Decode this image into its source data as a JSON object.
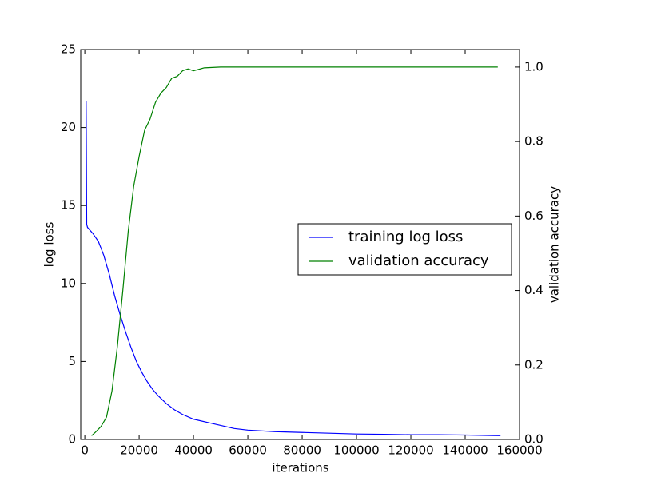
{
  "chart_data": {
    "type": "line",
    "xlabel": "iterations",
    "ylabel": "log loss",
    "y2label": "validation accuracy",
    "ylabel_color": "#0000ff",
    "y2label_color": "#008000",
    "xlim": [
      -1500,
      160000
    ],
    "xticks": [
      0,
      20000,
      40000,
      60000,
      80000,
      100000,
      120000,
      140000,
      160000
    ],
    "ylim": [
      0,
      25
    ],
    "yticks": [
      0,
      5,
      10,
      15,
      20,
      25
    ],
    "y2lim": [
      0,
      1.047
    ],
    "y2ticks": [
      {
        "value": 0,
        "label": "0.0"
      },
      {
        "value": 0.2,
        "label": "0.2"
      },
      {
        "value": 0.4,
        "label": "0.4"
      },
      {
        "value": 0.6,
        "label": "0.6"
      },
      {
        "value": 0.8,
        "label": "0.8"
      },
      {
        "value": 1.0,
        "label": "1.0"
      }
    ],
    "grid": false,
    "legend": "center right",
    "series": [
      {
        "name": "training log loss",
        "color": "#0000ff",
        "axis": "y",
        "x": [
          500,
          700,
          1000,
          3000,
          5000,
          7000,
          9000,
          11000,
          13000,
          15000,
          17000,
          19000,
          21000,
          23000,
          25000,
          27000,
          30000,
          33000,
          36000,
          40000,
          45000,
          50000,
          55000,
          60000,
          70000,
          80000,
          90000,
          100000,
          110000,
          120000,
          130000,
          140000,
          150000,
          153000
        ],
        "values": [
          21.7,
          13.8,
          13.6,
          13.2,
          12.7,
          11.8,
          10.6,
          9.2,
          8.0,
          6.9,
          5.9,
          5.0,
          4.3,
          3.7,
          3.2,
          2.8,
          2.3,
          1.9,
          1.6,
          1.3,
          1.1,
          0.9,
          0.7,
          0.6,
          0.5,
          0.45,
          0.4,
          0.35,
          0.33,
          0.3,
          0.3,
          0.28,
          0.25,
          0.24
        ]
      },
      {
        "name": "validation accuracy",
        "color": "#008000",
        "axis": "y2",
        "x": [
          2500,
          4000,
          6000,
          8000,
          10000,
          12000,
          14000,
          16000,
          18000,
          20000,
          22000,
          24000,
          26000,
          28000,
          30000,
          32000,
          34000,
          36000,
          38000,
          40000,
          44000,
          50000,
          60000,
          80000,
          100000,
          120000,
          140000,
          152000
        ],
        "values": [
          0.01,
          0.02,
          0.035,
          0.06,
          0.13,
          0.25,
          0.4,
          0.56,
          0.68,
          0.76,
          0.83,
          0.86,
          0.905,
          0.93,
          0.945,
          0.97,
          0.975,
          0.99,
          0.995,
          0.99,
          0.998,
          1.0,
          1.0,
          1.0,
          1.0,
          1.0,
          1.0,
          1.0
        ]
      }
    ]
  }
}
